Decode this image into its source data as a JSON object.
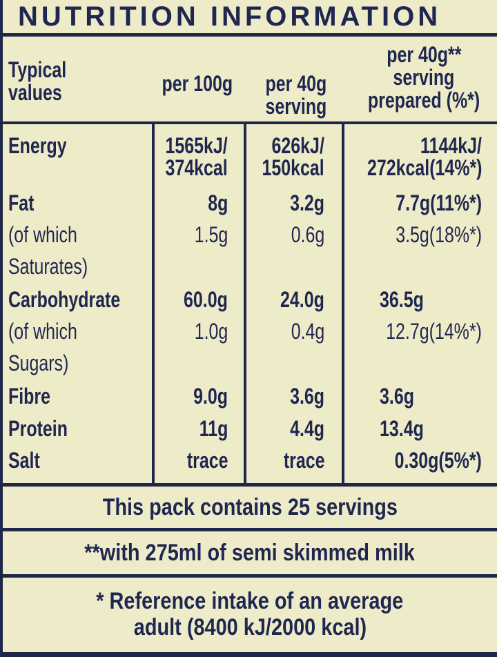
{
  "title": "NUTRITION INFORMATION",
  "header": {
    "col0": [
      "Typical",
      "values"
    ],
    "col1": [
      "per 100g"
    ],
    "col2": [
      "per 40g",
      "serving"
    ],
    "col3": [
      "per 40g**",
      "serving",
      "prepared (%*)"
    ]
  },
  "rows": [
    {
      "label": "Energy",
      "bold": true,
      "v1": [
        "1565kJ/",
        "374kcal"
      ],
      "v2": [
        "626kJ/",
        "150kcal"
      ],
      "v3": [
        "1144kJ/",
        "272kcal(14%*)"
      ]
    },
    {
      "label": "Fat",
      "bold": true,
      "v1": "8g",
      "v2": "3.2g",
      "v3": "7.7g(11%*)"
    },
    {
      "label": "(of which",
      "bold": false,
      "v1": "1.5g",
      "v2": "0.6g",
      "v3": "3.5g(18%*)"
    },
    {
      "label": "Saturates)",
      "bold": false
    },
    {
      "label": "Carbohydrate",
      "bold": true,
      "v1": "60.0g",
      "v2": "24.0g",
      "v3": "36.5g"
    },
    {
      "label": "(of which",
      "bold": false,
      "v1": "1.0g",
      "v2": "0.4g",
      "v3": "12.7g(14%*)"
    },
    {
      "label": "Sugars)",
      "bold": false
    },
    {
      "label": "Fibre",
      "bold": true,
      "v1": "9.0g",
      "v2": "3.6g",
      "v3": "3.6g"
    },
    {
      "label": "Protein",
      "bold": true,
      "v1": "11g",
      "v2": "4.4g",
      "v3": "13.4g"
    },
    {
      "label": "Salt",
      "bold": true,
      "v1": "trace",
      "v2": "trace",
      "v3": "0.30g(5%*)"
    }
  ],
  "footer": {
    "servings": "This pack contains 25 servings",
    "milk": "**with 275ml of semi skimmed milk",
    "reference": [
      "* Reference intake of an average",
      "adult (8400 kJ/2000 kcal)"
    ]
  },
  "colors": {
    "background": "#eeebc9",
    "ink": "#1f2750"
  }
}
